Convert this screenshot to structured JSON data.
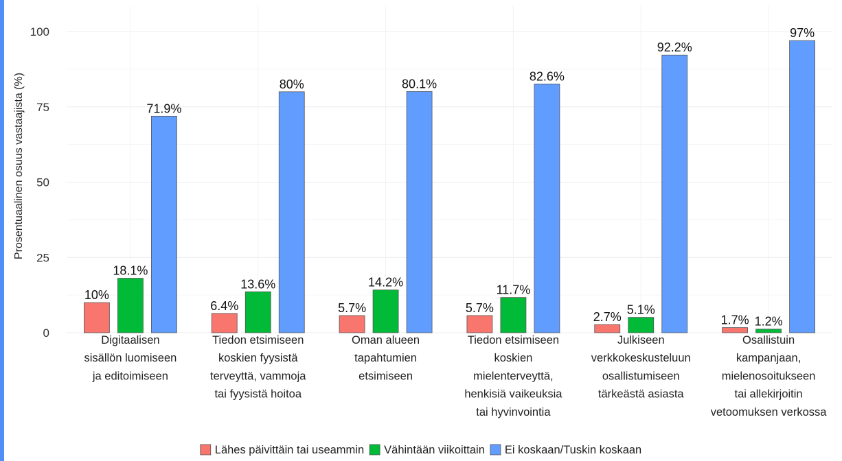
{
  "chart_data": {
    "type": "bar",
    "title": "",
    "xlabel": "",
    "ylabel": "Prosentuaalinen osuus vastaajista (%)",
    "ylim": [
      0,
      100
    ],
    "yticks": [
      0,
      25,
      50,
      75,
      100
    ],
    "grid": true,
    "legend_position": "bottom",
    "categories": [
      [
        "Digitaalisen",
        "sisällön luomiseen",
        "ja editoimiseen"
      ],
      [
        "Tiedon etsimiseen",
        "koskien fyysistä",
        "terveyttä, vammoja",
        "tai fyysistä hoitoa"
      ],
      [
        "Oman alueen",
        "tapahtumien",
        "etsimiseen"
      ],
      [
        "Tiedon etsimiseen",
        "koskien",
        "mielenterveyttä,",
        "henkisiä vaikeuksia",
        "tai hyvinvointia"
      ],
      [
        "Julkiseen",
        "verkkokeskusteluun",
        "osallistumiseen",
        "tärkeästä asiasta"
      ],
      [
        "Osallistuin",
        "kampanjaan,",
        "mielenosoitukseen",
        "tai allekirjoitin",
        "vetoomuksen verkossa"
      ]
    ],
    "series": [
      {
        "name": "Lähes päivittäin tai useammin",
        "color": "#f8766d",
        "values": [
          10,
          6.4,
          5.7,
          5.7,
          2.7,
          1.7
        ],
        "labels": [
          "10%",
          "6.4%",
          "5.7%",
          "5.7%",
          "2.7%",
          "1.7%"
        ]
      },
      {
        "name": "Vähintään viikoittain",
        "color": "#00ba38",
        "values": [
          18.1,
          13.6,
          14.2,
          11.7,
          5.1,
          1.2
        ],
        "labels": [
          "18.1%",
          "13.6%",
          "14.2%",
          "11.7%",
          "5.1%",
          "1.2%"
        ]
      },
      {
        "name": "Ei koskaan/Tuskin koskaan",
        "color": "#619cff",
        "values": [
          71.9,
          80,
          80.1,
          82.6,
          92.2,
          97
        ],
        "labels": [
          "71.9%",
          "80%",
          "80.1%",
          "82.6%",
          "92.2%",
          "97%"
        ]
      }
    ]
  }
}
